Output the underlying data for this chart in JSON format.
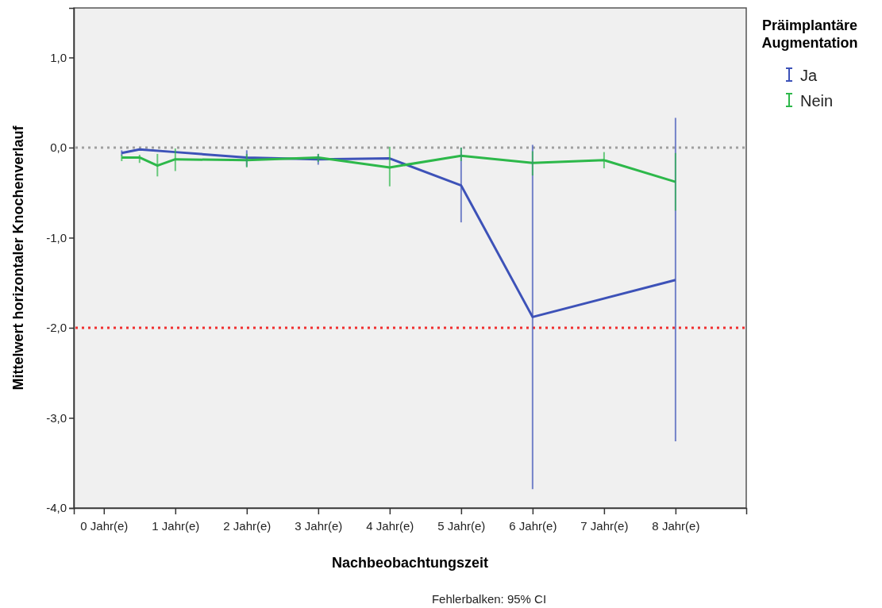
{
  "chart_data": {
    "type": "line",
    "xlabel": "Nachbeobachtungszeit",
    "ylabel": "Mittelwert horizontaler Knochenverlauf",
    "legend_title": "Präimplantäre Augmentation",
    "annotations": [
      "Fehlerbalken: 95% CI"
    ],
    "xlim": [
      -0.42,
      8.99
    ],
    "xticks": [
      {
        "value": 0,
        "label": "0 Jahr(e)"
      },
      {
        "value": 1,
        "label": "1 Jahr(e)"
      },
      {
        "value": 2,
        "label": "2 Jahr(e)"
      },
      {
        "value": 3,
        "label": "3 Jahr(e)"
      },
      {
        "value": 4,
        "label": "4 Jahr(e)"
      },
      {
        "value": 5,
        "label": "5 Jahr(e)"
      },
      {
        "value": 6,
        "label": "6 Jahr(e)"
      },
      {
        "value": 7,
        "label": "7 Jahr(e)"
      },
      {
        "value": 8,
        "label": "8 Jahr(e)"
      }
    ],
    "ylim": [
      -4,
      1.55
    ],
    "yticks": [
      {
        "value": -4,
        "label": "-4,0"
      },
      {
        "value": -3,
        "label": "-3,0"
      },
      {
        "value": -2,
        "label": "-2,0"
      },
      {
        "value": -1,
        "label": "-1,0"
      },
      {
        "value": 0,
        "label": "0,0"
      },
      {
        "value": 1,
        "label": "1,0"
      }
    ],
    "grid": false,
    "legend": "top right",
    "marker": "none",
    "line_style": "solid",
    "ref_lines": [
      {
        "axis": "y",
        "value": 0,
        "label": null,
        "color": "#a0a0a0",
        "line_style": "dotted"
      },
      {
        "axis": "y",
        "value": -2,
        "label": null,
        "color": "#f03030",
        "line_style": "dotted"
      }
    ],
    "series": [
      {
        "name": "Ja",
        "color": "#3d52b8",
        "x": [
          0.25,
          0.5,
          1,
          2,
          3,
          4,
          5,
          6,
          8
        ],
        "values": [
          -0.06,
          -0.02,
          -0.05,
          -0.11,
          -0.13,
          -0.12,
          -0.42,
          -1.88,
          -1.47
        ],
        "errors": [
          [
            -0.09,
            -0.03
          ],
          null,
          null,
          [
            -0.21,
            -0.03
          ],
          [
            -0.19,
            -0.07
          ],
          null,
          [
            -0.83,
            0.0
          ],
          [
            -3.79,
            0.03
          ],
          [
            -3.26,
            0.33
          ]
        ]
      },
      {
        "name": "Nein",
        "color": "#2db84a",
        "x": [
          0.25,
          0.5,
          0.75,
          1,
          2,
          3,
          4,
          5,
          6,
          7,
          8
        ],
        "values": [
          -0.11,
          -0.11,
          -0.2,
          -0.13,
          -0.14,
          -0.11,
          -0.22,
          -0.09,
          -0.17,
          -0.14,
          -0.38
        ],
        "errors": [
          [
            -0.15,
            -0.08
          ],
          [
            -0.17,
            -0.08
          ],
          [
            -0.32,
            -0.07
          ],
          [
            -0.26,
            -0.01
          ],
          [
            -0.22,
            -0.07
          ],
          [
            -0.16,
            -0.07
          ],
          [
            -0.43,
            0.01
          ],
          [
            -0.15,
            0.0
          ],
          [
            -0.31,
            -0.04
          ],
          [
            -0.23,
            -0.05
          ],
          [
            -0.7,
            -0.06
          ]
        ]
      }
    ]
  }
}
